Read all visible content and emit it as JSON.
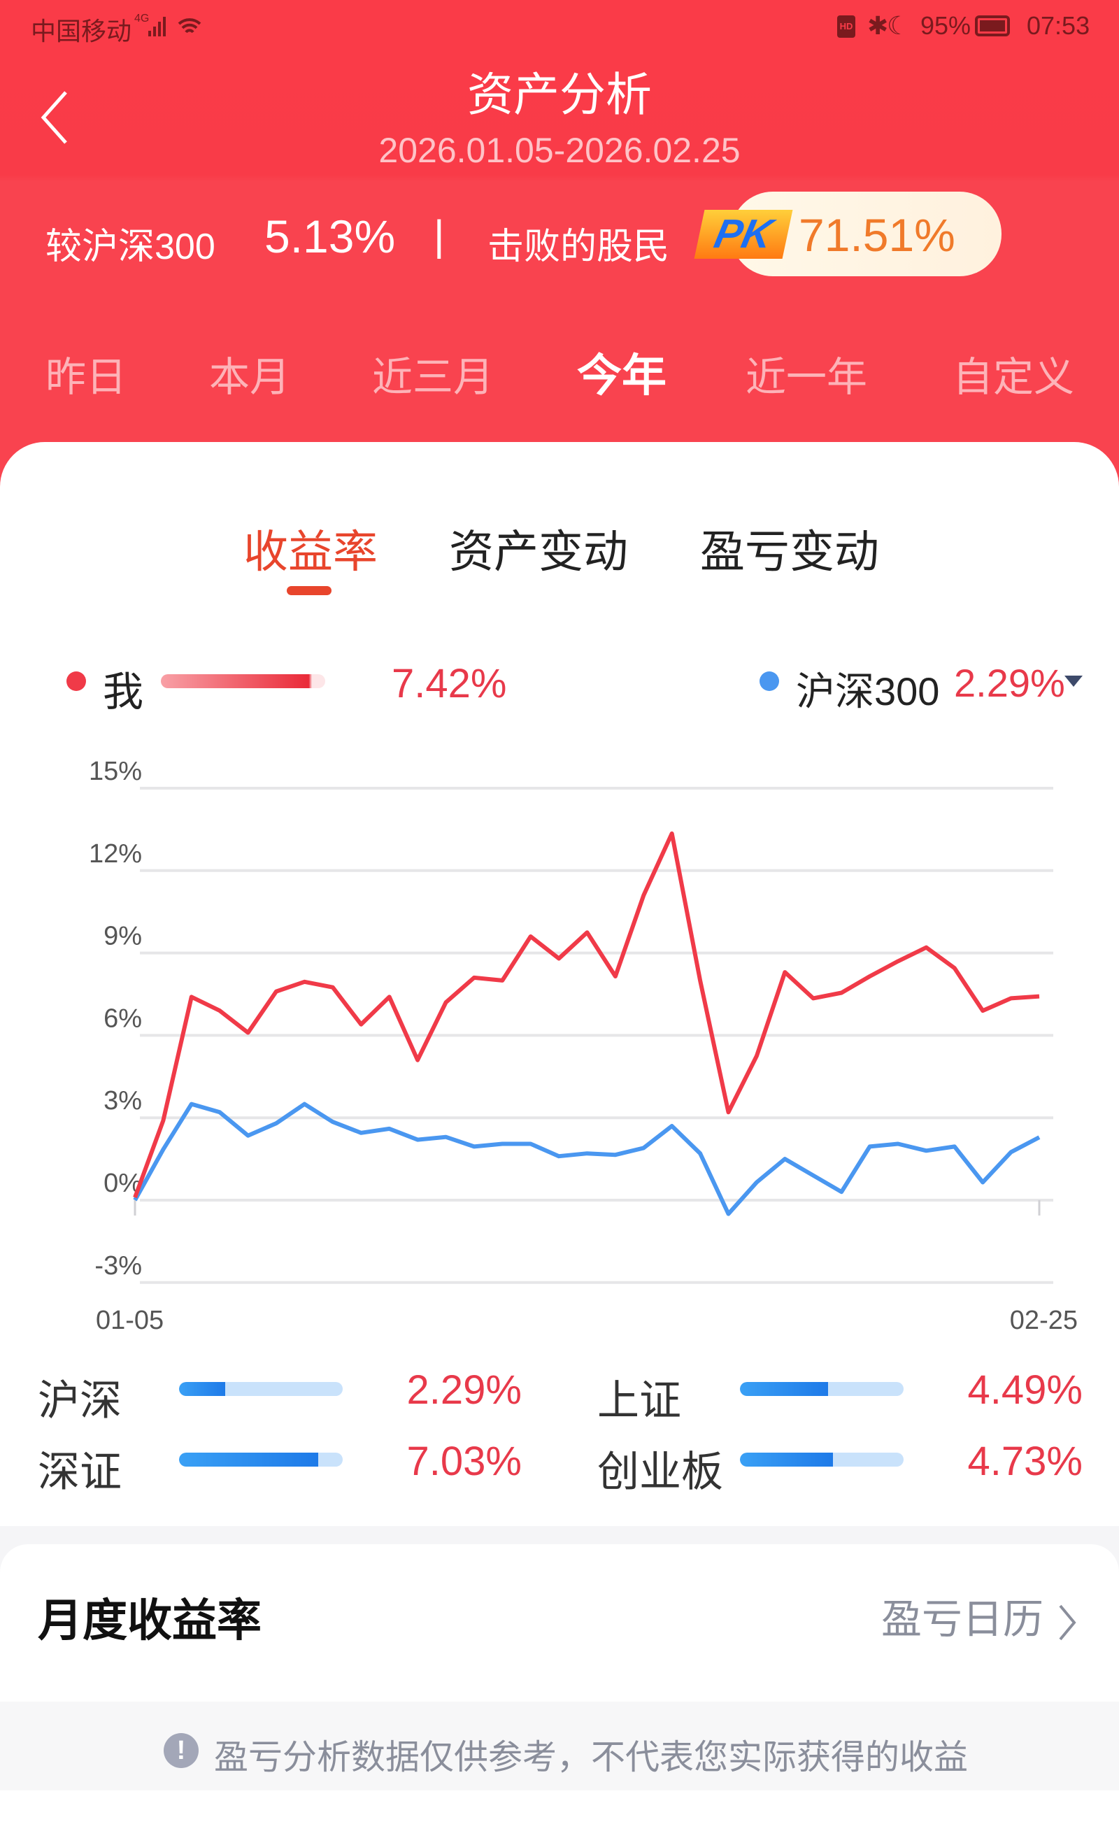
{
  "status_bar": {
    "carrier": "中国移动",
    "network": "4G",
    "battery": "95%",
    "time": "07:53",
    "icons": [
      "signal-icon",
      "wifi-icon",
      "hd-icon",
      "bluetooth-icon",
      "moon-icon",
      "battery-icon"
    ]
  },
  "header": {
    "title": "资产分析",
    "date_range": "2026.01.05-2026.02.25",
    "back_icon": "chevron-left-icon"
  },
  "compare": {
    "label": "较沪深300",
    "value": "5.13%",
    "separator": "|",
    "beat_label": "击败的股民",
    "pk_badge": "PK",
    "beat_value": "71.51%"
  },
  "period_tabs": [
    {
      "label": "昨日"
    },
    {
      "label": "本月"
    },
    {
      "label": "近三月"
    },
    {
      "label": "今年",
      "active": true
    },
    {
      "label": "近一年"
    },
    {
      "label": "自定义"
    }
  ],
  "sub_tabs": [
    {
      "label": "收益率",
      "active": true
    },
    {
      "label": "资产变动"
    },
    {
      "label": "盈亏变动"
    }
  ],
  "legend": {
    "me_label": "我",
    "me_value": "7.42%",
    "bench_label": "沪深300",
    "bench_value": "2.29%",
    "dropdown_icon": "caret-down-icon"
  },
  "colors": {
    "brand_red": "#fa3b48",
    "me_line": "#f03a48",
    "bench_line": "#4a97f0",
    "value_red": "#e8394a",
    "active_tab": "#e8452c",
    "pk_orange": "#f07a2a"
  },
  "chart_data": {
    "type": "line",
    "x_start_label": "01-05",
    "x_end_label": "02-25",
    "yticks": [
      "15%",
      "12%",
      "9%",
      "6%",
      "3%",
      "0%",
      "-3%"
    ],
    "ytick_values": [
      15,
      12,
      9,
      6,
      3,
      0,
      -3
    ],
    "ylim": [
      -3,
      15
    ],
    "grid": true,
    "series": [
      {
        "name": "我",
        "color": "#f03a48",
        "values": [
          0.1,
          2.9,
          7.4,
          6.9,
          6.1,
          7.6,
          7.95,
          7.75,
          6.4,
          7.4,
          5.1,
          7.2,
          8.1,
          8.0,
          9.6,
          8.8,
          9.75,
          8.15,
          11.1,
          13.35,
          8.0,
          3.2,
          5.25,
          8.3,
          7.35,
          7.55,
          8.15,
          8.7,
          9.2,
          8.45,
          6.9,
          7.35,
          7.42
        ]
      },
      {
        "name": "沪深300",
        "color": "#4a97f0",
        "values": [
          0,
          1.85,
          3.5,
          3.2,
          2.35,
          2.8,
          3.5,
          2.85,
          2.45,
          2.6,
          2.2,
          2.3,
          1.95,
          2.05,
          2.05,
          1.6,
          1.7,
          1.65,
          1.9,
          2.7,
          1.7,
          -0.5,
          0.65,
          1.5,
          0.9,
          0.3,
          1.95,
          2.05,
          1.8,
          1.95,
          0.65,
          1.75,
          2.29
        ]
      }
    ]
  },
  "indices": [
    {
      "label": "沪深",
      "value": "2.29%",
      "bar_fill": 0.28
    },
    {
      "label": "上证",
      "value": "4.49%",
      "bar_fill": 0.54
    },
    {
      "label": "深证",
      "value": "7.03%",
      "bar_fill": 0.85
    },
    {
      "label": "创业板",
      "value": "4.73%",
      "bar_fill": 0.57
    }
  ],
  "monthly": {
    "title": "月度收益率",
    "calendar_link": "盈亏日历"
  },
  "footer": {
    "notice": "盈亏分析数据仅供参考，不代表您实际获得的收益",
    "icon": "exclamation-icon"
  }
}
